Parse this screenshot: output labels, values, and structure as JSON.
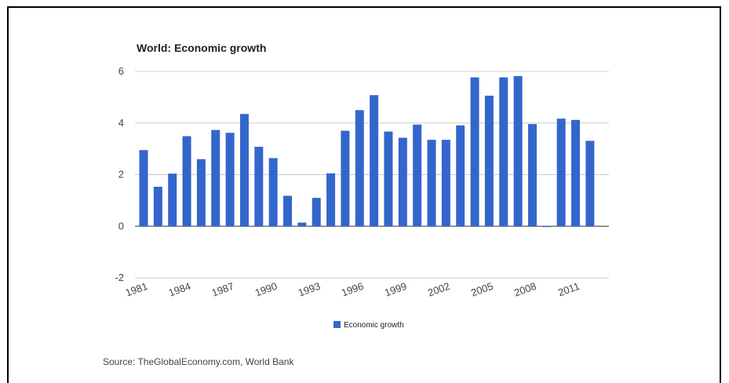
{
  "chart_data": {
    "type": "bar",
    "title": "World: Economic growth",
    "xlabel": "",
    "ylabel": "",
    "ylim": [
      -2,
      6
    ],
    "yticks": [
      -2,
      0,
      2,
      4,
      6
    ],
    "grid": true,
    "legend": "bottom",
    "bar_color": "#3366cc",
    "categories": [
      "1981",
      "1982",
      "1983",
      "1984",
      "1985",
      "1986",
      "1987",
      "1988",
      "1989",
      "1990",
      "1991",
      "1992",
      "1993",
      "1994",
      "1995",
      "1996",
      "1997",
      "1998",
      "1999",
      "2000",
      "2001",
      "2002",
      "2003",
      "2004",
      "2005",
      "2006",
      "2007",
      "2008",
      "2009",
      "2010",
      "2011",
      "2012"
    ],
    "xtick_labels": [
      "1981",
      "1984",
      "1987",
      "1990",
      "1993",
      "1996",
      "1999",
      "2002",
      "2005",
      "2008",
      "2011"
    ],
    "series": [
      {
        "name": "Economic growth",
        "values": [
          2.95,
          1.53,
          2.04,
          3.49,
          2.6,
          3.73,
          3.62,
          4.35,
          3.08,
          2.64,
          1.18,
          0.14,
          1.1,
          2.05,
          3.7,
          4.5,
          5.08,
          3.67,
          3.43,
          3.94,
          3.35,
          3.35,
          3.91,
          5.77,
          5.06,
          5.77,
          5.82,
          3.96,
          -0.03,
          4.17,
          4.12,
          3.31
        ]
      }
    ]
  },
  "source": "Source: TheGlobalEconomy.com, World Bank"
}
